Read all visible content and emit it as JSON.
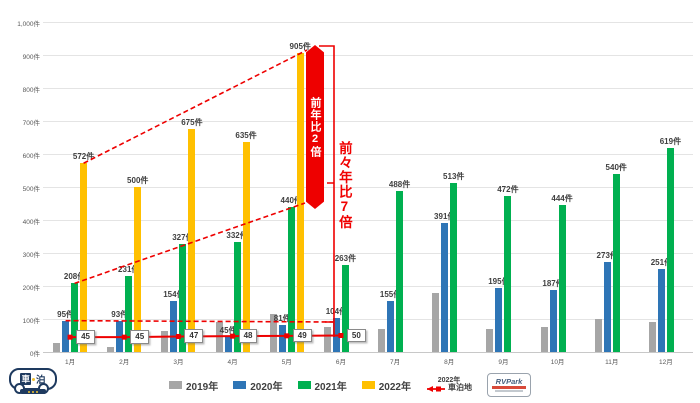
{
  "chart_data": {
    "type": "bar+line",
    "title": "",
    "unit": "件",
    "categories": [
      "1月",
      "2月",
      "3月",
      "4月",
      "5月",
      "6月",
      "7月",
      "8月",
      "9月",
      "10月",
      "11月",
      "12月"
    ],
    "series": [
      {
        "name": "2019年",
        "color": "#A6A6A6",
        "show_labels": false,
        "values": [
          28,
          15,
          65,
          90,
          115,
          75,
          70,
          180,
          70,
          75,
          100,
          90
        ]
      },
      {
        "name": "2020年",
        "color": "#2E75B6",
        "show_labels": true,
        "values": [
          95,
          93,
          154,
          45,
          81,
          104,
          155,
          391,
          195,
          187,
          273,
          251
        ]
      },
      {
        "name": "2021年",
        "color": "#00B050",
        "show_labels": true,
        "values": [
          208,
          231,
          327,
          332,
          440,
          263,
          488,
          513,
          472,
          444,
          540,
          619
        ]
      },
      {
        "name": "2022年",
        "color": "#FFC000",
        "show_labels": true,
        "values": [
          572,
          500,
          675,
          635,
          905,
          null,
          null,
          null,
          null,
          null,
          null,
          null
        ]
      }
    ],
    "line_series": {
      "year": "2022年",
      "name": "車泊地",
      "color": "#EE0000",
      "values": [
        45,
        45,
        47,
        48,
        49,
        50,
        null,
        null,
        null,
        null,
        null,
        null
      ]
    },
    "ylim": [
      0,
      1000
    ],
    "y_ticks": [
      "0件",
      "100件",
      "200件",
      "300件",
      "400件",
      "500件",
      "600件",
      "700件",
      "800件",
      "900件",
      "1,000件"
    ],
    "grid": true,
    "legend_position": "bottom",
    "annotations": {
      "arrow_label": "前年比2倍",
      "bracket_label": "前々年比7倍"
    }
  },
  "logos": {
    "car_stay": {
      "char1": "車",
      "char2": "泊"
    },
    "rv_park": {
      "text": "RVPark"
    }
  }
}
